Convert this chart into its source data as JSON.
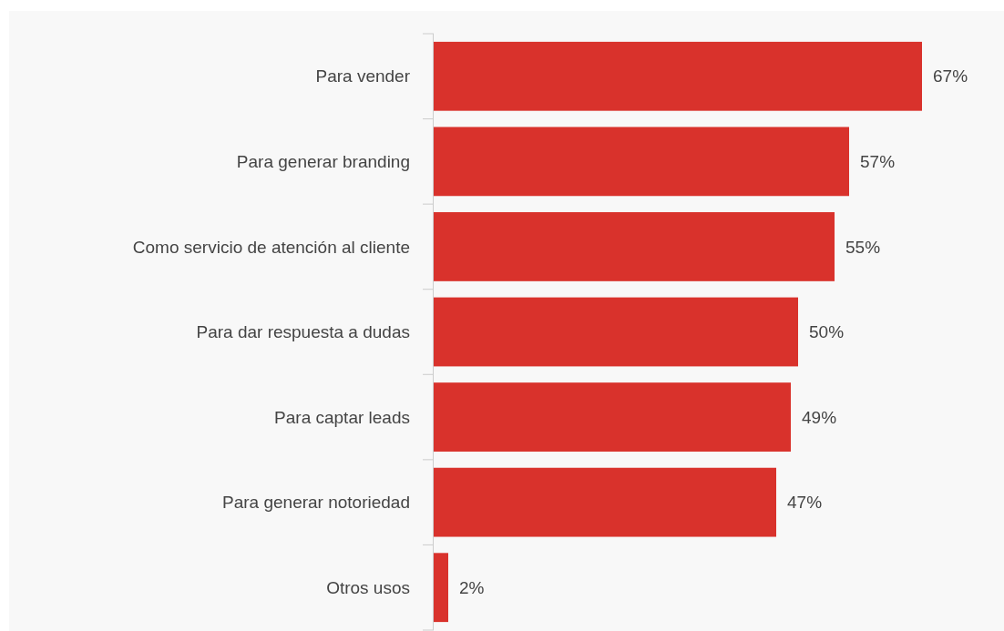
{
  "chart_data": {
    "type": "bar",
    "orientation": "horizontal",
    "categories": [
      "Para vender",
      "Para generar branding",
      "Como servicio de atención al cliente",
      "Para dar respuesta a dudas",
      "Para captar leads",
      "Para generar notoriedad",
      "Otros usos"
    ],
    "values": [
      67,
      57,
      55,
      50,
      49,
      47,
      2
    ],
    "value_labels": [
      "67%",
      "57%",
      "55%",
      "50%",
      "49%",
      "47%",
      "2%"
    ],
    "color": "#d9322c",
    "grid": false
  }
}
